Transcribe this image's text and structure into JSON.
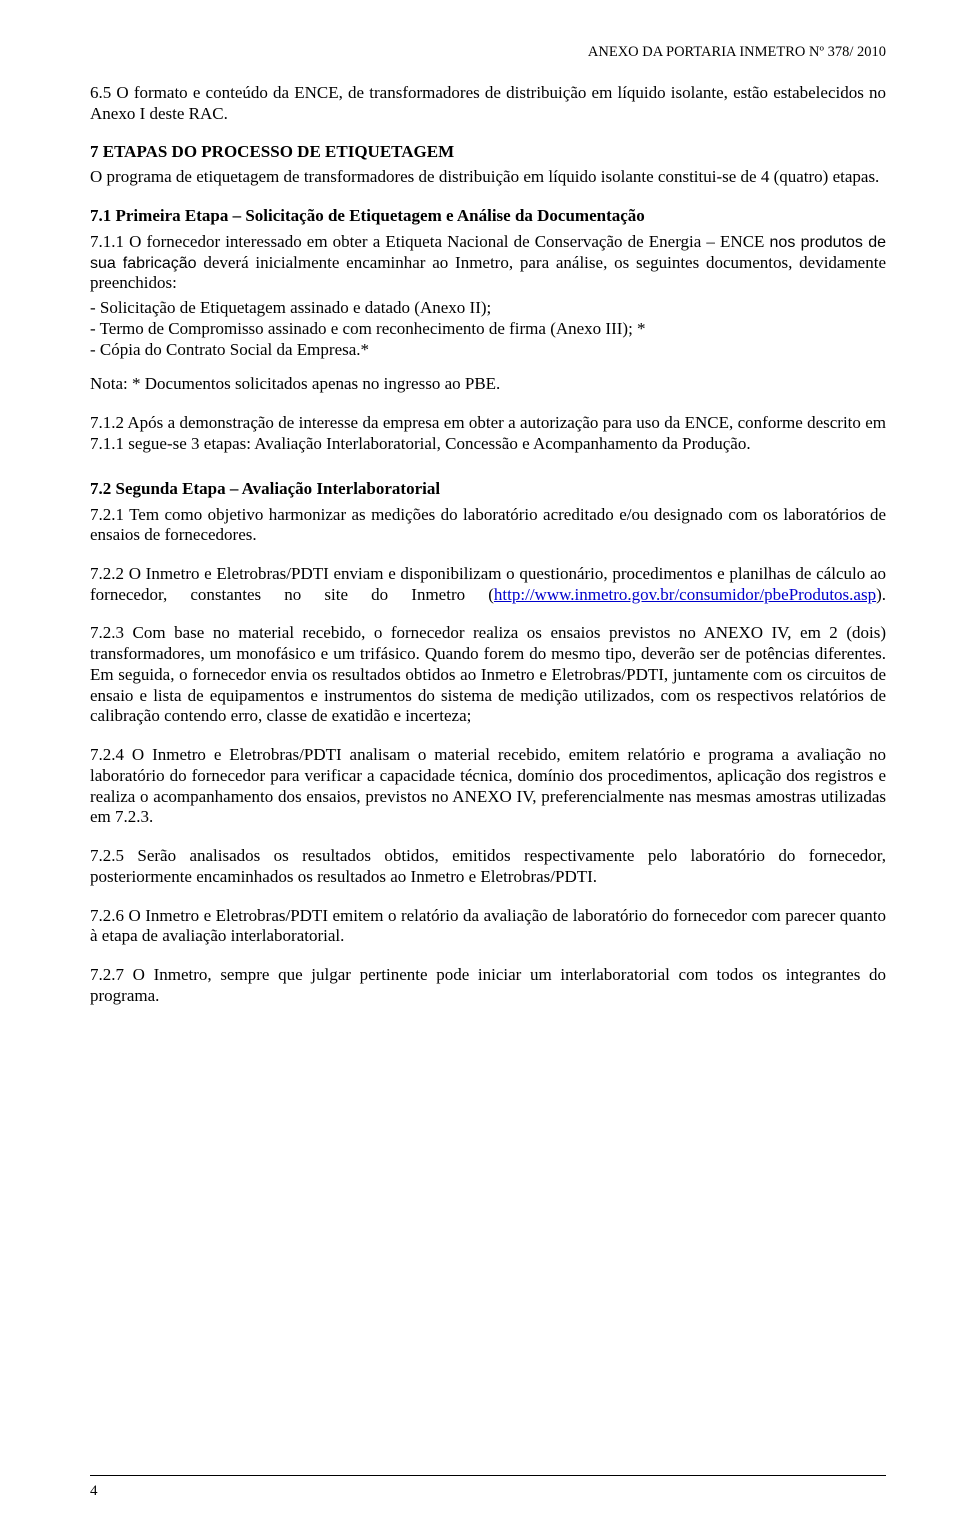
{
  "header": {
    "text": "ANEXO DA PORTARIA INMETRO Nº 378/ 2010"
  },
  "s65": "6.5 O formato e conteúdo da ENCE, de transformadores de distribuição em líquido isolante, estão estabelecidos no Anexo I deste RAC.",
  "s7": {
    "title": "7   ETAPAS DO PROCESSO DE ETIQUETAGEM",
    "body": "O programa de etiquetagem de transformadores de distribuição em líquido isolante constitui-se de 4 (quatro) etapas."
  },
  "s71": {
    "title": "7.1 Primeira Etapa – Solicitação de Etiquetagem e Análise da Documentação",
    "p711a": "7.1.1   O fornecedor interessado em obter a Etiqueta Nacional de Conservação de Energia – ENCE ",
    "p711sans": "nos produtos de sua fabricação",
    "p711b": " deverá inicialmente encaminhar ao Inmetro, para análise, os seguintes documentos, devidamente preenchidos:",
    "li1": "- Solicitação de Etiquetagem assinado e datado (Anexo II);",
    "li2": "- Termo de Compromisso assinado e com reconhecimento de firma (Anexo III); *",
    "li3": "- Cópia do Contrato Social da Empresa.*",
    "nota": "Nota: * Documentos solicitados apenas no ingresso ao PBE.",
    "p712": "7.1.2   Após a demonstração de interesse da empresa em obter a autorização para uso da ENCE, conforme descrito em 7.1.1 segue-se 3 etapas: Avaliação Interlaboratorial, Concessão e Acompanhamento da Produção."
  },
  "s72": {
    "title": "7.2 Segunda Etapa – Avaliação Interlaboratorial",
    "p721": "7.2.1   Tem como objetivo harmonizar as medições do laboratório acreditado e/ou designado com os laboratórios de ensaios de fornecedores.",
    "p722a": "7.2.2   O Inmetro e Eletrobras/PDTI enviam e disponibilizam o questionário, procedimentos e planilhas de cálculo ao fornecedor, constantes no site do Inmetro (",
    "p722link": "http://www.inmetro.gov.br/consumidor/pbeProdutos.asp",
    "p722b": ").",
    "p723": "7.2.3   Com base no material recebido, o fornecedor realiza os ensaios previstos no ANEXO IV, em 2 (dois) transformadores, um monofásico e um trifásico. Quando forem do mesmo tipo, deverão ser de potências diferentes. Em seguida, o fornecedor envia os resultados obtidos ao Inmetro e Eletrobras/PDTI, juntamente com os circuitos de ensaio e lista de equipamentos e instrumentos do sistema de medição utilizados, com os respectivos relatórios de calibração contendo erro, classe de exatidão e incerteza;",
    "p724": "7.2.4   O Inmetro e Eletrobras/PDTI analisam o material recebido, emitem relatório e programa a avaliação no laboratório do fornecedor para verificar a capacidade técnica, domínio dos procedimentos, aplicação dos registros e realiza o acompanhamento dos ensaios, previstos no ANEXO IV, preferencialmente nas mesmas amostras utilizadas em 7.2.3.",
    "p725": "7.2.5   Serão analisados os resultados obtidos, emitidos respectivamente pelo laboratório do fornecedor, posteriormente encaminhados os resultados ao Inmetro e Eletrobras/PDTI.",
    "p726": "7.2.6   O Inmetro e Eletrobras/PDTI emitem o relatório da avaliação de laboratório do fornecedor com parecer quanto à etapa de avaliação interlaboratorial.",
    "p727": "7.2.7   O Inmetro, sempre que julgar pertinente pode iniciar um interlaboratorial com todos os integrantes do programa."
  },
  "footer": {
    "page": "4"
  }
}
